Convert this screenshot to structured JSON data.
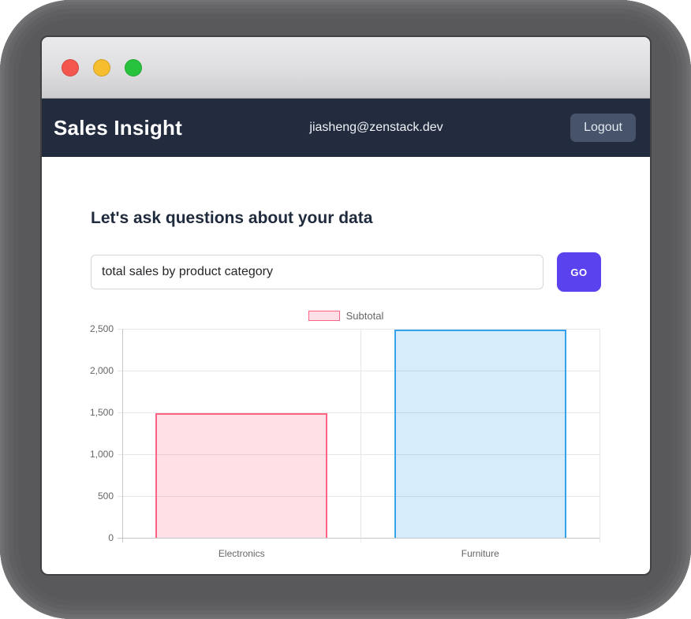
{
  "theme": {
    "accent": "#5a43ee",
    "navbar_bg": "#222c3e",
    "logout_bg": "#46536a",
    "frame_bg": "#59595b",
    "traffic_lights": {
      "close": "#f4564d",
      "minimize": "#f6bd2f",
      "zoom": "#27c33c"
    }
  },
  "navbar": {
    "brand": "Sales Insight",
    "user_email": "jiasheng@zenstack.dev",
    "logout_label": "Logout"
  },
  "main": {
    "heading": "Let's ask questions about your data",
    "query": {
      "value": "total sales by product category",
      "placeholder": ""
    },
    "go_label": "GO"
  },
  "chart_data": {
    "type": "bar",
    "title": "",
    "categories": [
      "Electronics",
      "Furniture"
    ],
    "series": [
      {
        "name": "Subtotal",
        "values": [
          1490,
          2490
        ]
      }
    ],
    "bar_colors": [
      {
        "fill": "rgba(255,99,132,0.2)",
        "border": "rgb(255,99,132)"
      },
      {
        "fill": "rgba(54,162,235,0.2)",
        "border": "rgb(54,162,235)"
      }
    ],
    "xlabel": "",
    "ylabel": "",
    "ylim": [
      0,
      2500
    ],
    "ytick_step": 500,
    "ytick_labels": [
      "0",
      "500",
      "1,000",
      "1,500",
      "2,000",
      "2,500"
    ],
    "grid": true,
    "legend": {
      "position": "top",
      "label": "Subtotal"
    }
  }
}
